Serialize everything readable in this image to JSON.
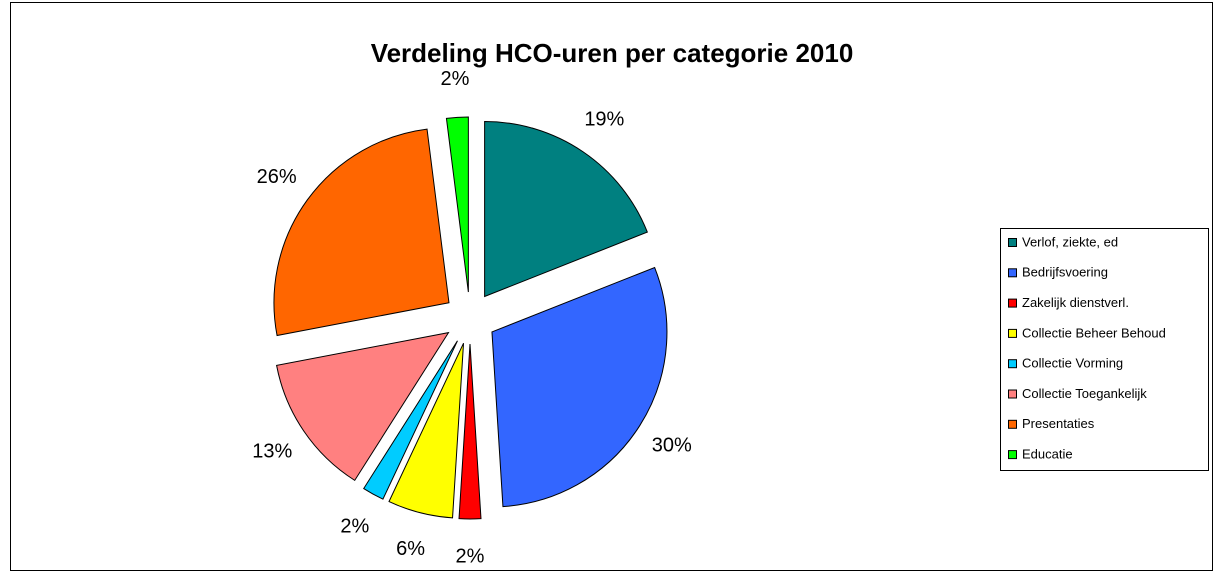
{
  "chart_data": {
    "type": "pie",
    "title": "Verdeling HCO-uren per categorie 2010",
    "categories": [
      "Verlof, ziekte, ed",
      "Bedrijfsvoering",
      "Zakelijk dienstverl.",
      "Collectie Beheer Behoud",
      "Collectie Vorming",
      "Collectie Toegankelijk",
      "Presentaties",
      "Educatie"
    ],
    "values": [
      19,
      30,
      2,
      6,
      2,
      13,
      26,
      2
    ],
    "value_labels": [
      "19%",
      "30%",
      "2%",
      "6%",
      "2%",
      "13%",
      "26%",
      "2%"
    ],
    "colors": [
      "#008080",
      "#3366ff",
      "#ff0000",
      "#ffff00",
      "#00ccff",
      "#ff8080",
      "#ff6600",
      "#00ff00"
    ],
    "legend": "right"
  }
}
